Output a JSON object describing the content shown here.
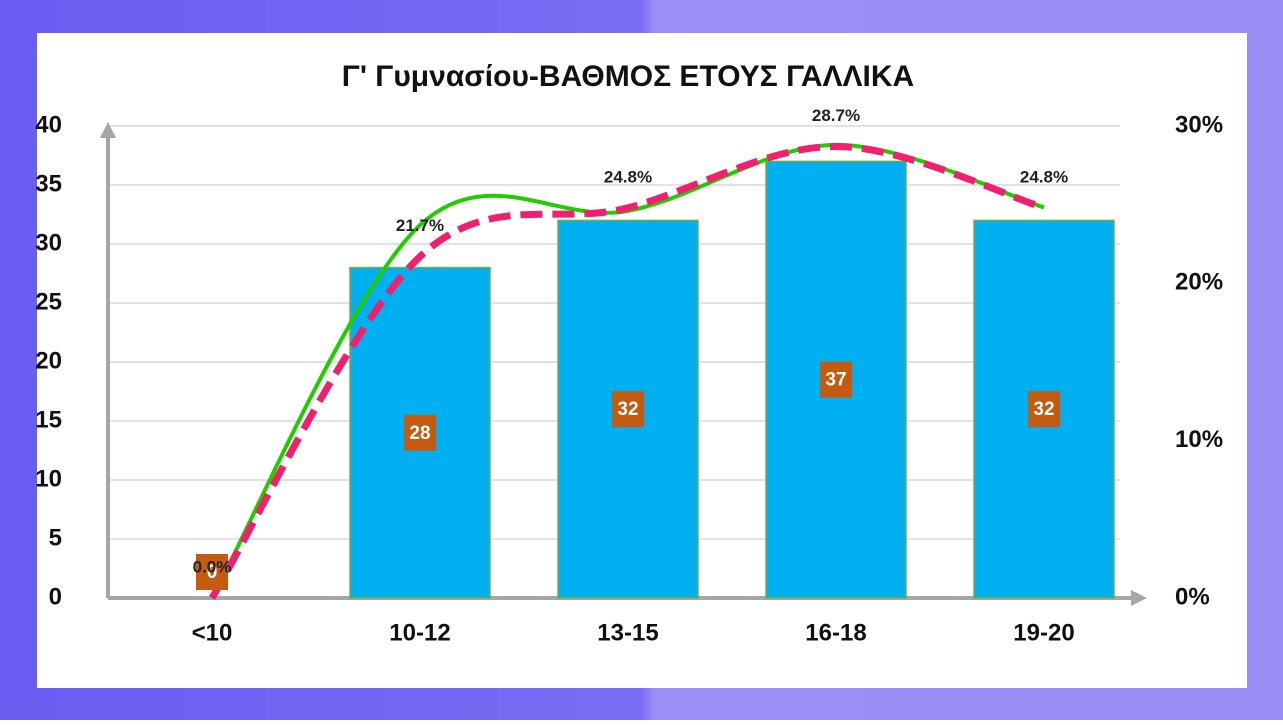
{
  "chart_data": {
    "type": "bar",
    "title": "Γ' Γυμνασίου-ΒΑΘΜΟΣ ΕΤΟΥΣ ΓΑΛΛΙΚΑ",
    "categories": [
      "<10",
      "10-12",
      "13-15",
      "16-18",
      "19-20"
    ],
    "series": [
      {
        "type": "bar",
        "color": "#00b0f0",
        "values": [
          0,
          28,
          32,
          37,
          32
        ]
      },
      {
        "type": "line",
        "color": "#22cc00",
        "values": [
          0,
          31.6,
          32.8,
          38.4,
          33.1
        ]
      },
      {
        "type": "line",
        "color": "#f0206e",
        "dashed": true,
        "axis": "y2",
        "values": [
          0,
          21.7,
          24.8,
          28.7,
          24.8
        ],
        "value_labels": [
          "0.0%",
          "21.7%",
          "24.8%",
          "28.7%",
          "24.8%"
        ]
      }
    ],
    "ylim": [
      0,
      40
    ],
    "yticks": [
      0,
      5,
      10,
      15,
      20,
      25,
      30,
      35,
      40
    ],
    "y2lim": [
      0,
      30
    ],
    "y2ticks": [
      {
        "value": 0,
        "label": "0%"
      },
      {
        "value": 10,
        "label": "10%"
      },
      {
        "value": 20,
        "label": "20%"
      },
      {
        "value": 30,
        "label": "30%"
      }
    ],
    "grid": true
  }
}
